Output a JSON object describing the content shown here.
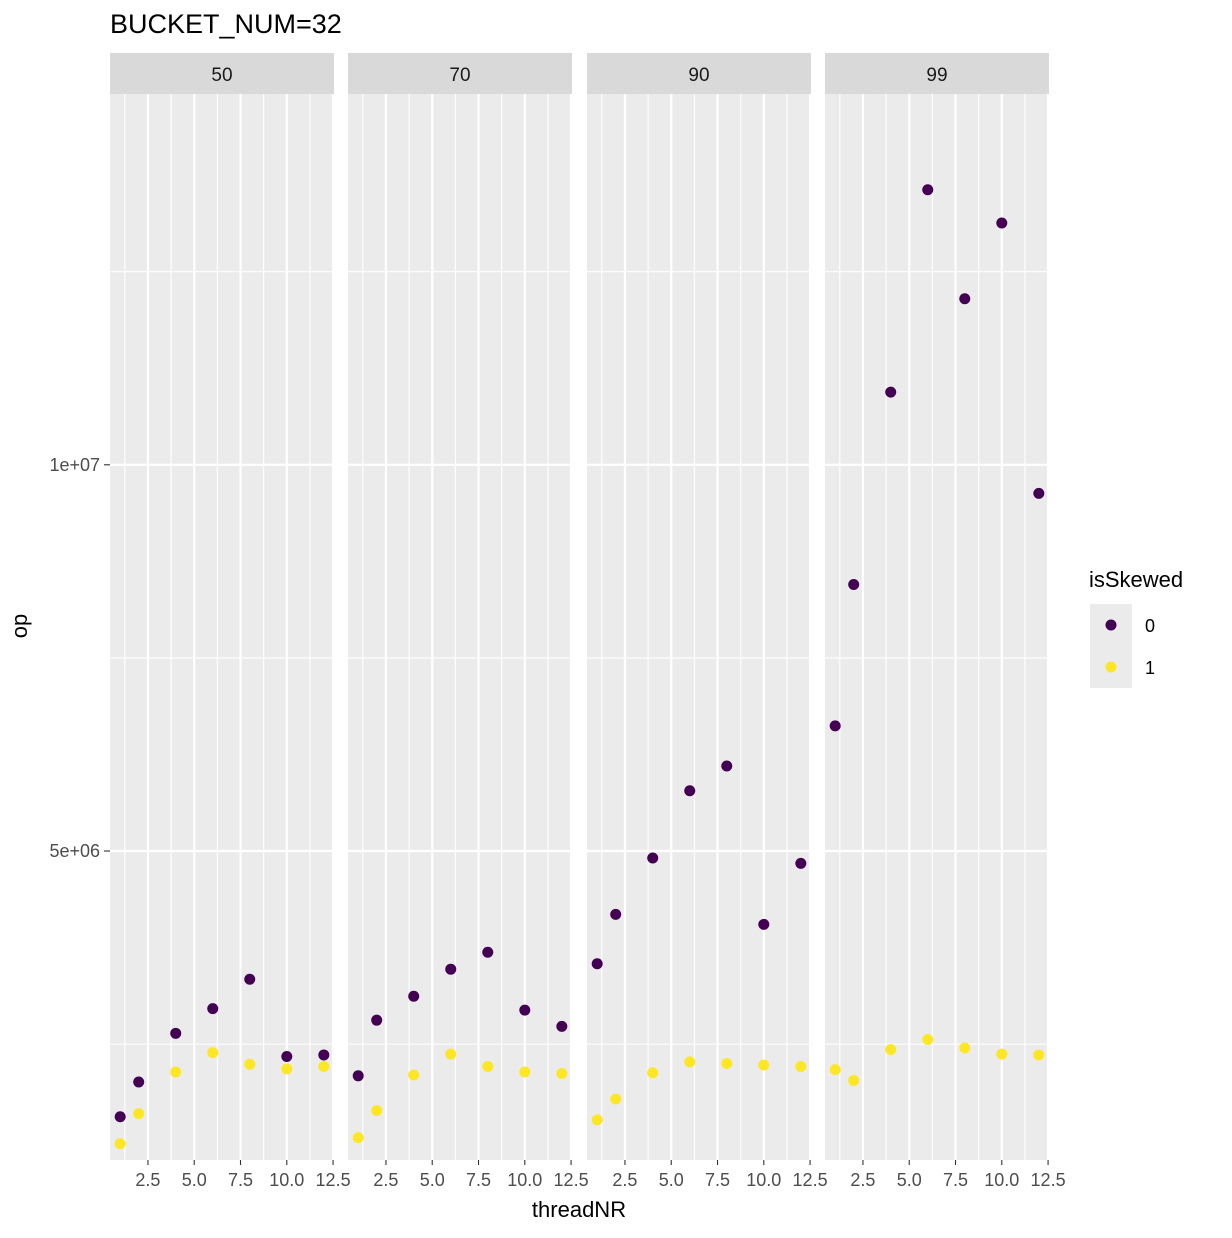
{
  "chart_data": {
    "type": "scatter",
    "title": "BUCKET_NUM=32",
    "xlabel": "threadNR",
    "ylabel": "op",
    "xlim": [
      0.45,
      12.55
    ],
    "ylim": [
      1000000.0,
      14800000.0
    ],
    "x_ticks": [
      2.5,
      5.0,
      7.5,
      10.0,
      12.5
    ],
    "x_tick_labels": [
      "2.5",
      "5.0",
      "7.5",
      "10.0",
      "12.5"
    ],
    "y_ticks": [
      5000000,
      10000000
    ],
    "y_tick_labels": [
      "5e+06",
      "1e+07"
    ],
    "grid": true,
    "facet_var": "",
    "facets": [
      {
        "label": "50",
        "series": [
          {
            "name": "0",
            "x": [
              1,
              2,
              4,
              6,
              8,
              10,
              12
            ],
            "y": [
              1560000,
              2010000,
              2640000,
              2960000,
              3340000,
              2340000,
              2360000
            ]
          },
          {
            "name": "1",
            "x": [
              1,
              2,
              4,
              6,
              8,
              10,
              12
            ],
            "y": [
              1210000,
              1600000,
              2140000,
              2390000,
              2240000,
              2180000,
              2210000
            ]
          }
        ]
      },
      {
        "label": "70",
        "series": [
          {
            "name": "0",
            "x": [
              1,
              2,
              4,
              6,
              8,
              10,
              12
            ],
            "y": [
              2090000,
              2810000,
              3120000,
              3470000,
              3690000,
              2940000,
              2730000
            ]
          },
          {
            "name": "1",
            "x": [
              1,
              2,
              4,
              6,
              8,
              10,
              12
            ],
            "y": [
              1290000,
              1640000,
              2100000,
              2370000,
              2210000,
              2140000,
              2120000
            ]
          }
        ]
      },
      {
        "label": "90",
        "series": [
          {
            "name": "0",
            "x": [
              1,
              2,
              4,
              6,
              8,
              10,
              12
            ],
            "y": [
              3540000,
              4180000,
              4910000,
              5780000,
              6100000,
              4050000,
              4840000
            ]
          },
          {
            "name": "1",
            "x": [
              1,
              2,
              4,
              6,
              8,
              10,
              12
            ],
            "y": [
              1520000,
              1790000,
              2130000,
              2270000,
              2250000,
              2230000,
              2210000
            ]
          }
        ]
      },
      {
        "label": "99",
        "series": [
          {
            "name": "0",
            "x": [
              1,
              2,
              4,
              6,
              8,
              10,
              12
            ],
            "y": [
              6620000,
              8450000,
              10940000,
              13560000,
              12150000,
              13130000,
              9630000
            ]
          },
          {
            "name": "1",
            "x": [
              1,
              2,
              4,
              6,
              8,
              10,
              12
            ],
            "y": [
              2170000,
              2030000,
              2430000,
              2560000,
              2450000,
              2370000,
              2360000
            ]
          }
        ]
      }
    ],
    "legend": {
      "title": "isSkewed",
      "position": "right",
      "entries": [
        {
          "label": "0",
          "color": "#440154"
        },
        {
          "label": "1",
          "color": "#FDE725"
        }
      ]
    },
    "colors": {
      "panel_background": "#EBEBEB",
      "grid": "#FFFFFF",
      "strip_background": "#D9D9D9"
    }
  }
}
